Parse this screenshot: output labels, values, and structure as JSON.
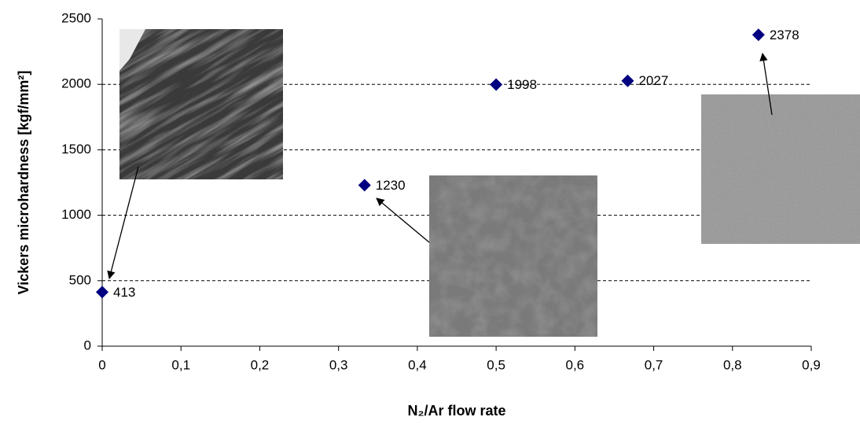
{
  "chart_data": {
    "type": "scatter",
    "x_label": "N₂/Ar flow rate",
    "y_label": "Vickers microhardness [kgf/mm²]",
    "x": [
      0,
      0.333,
      0.5,
      0.667,
      0.833
    ],
    "values": [
      413,
      1230,
      1998,
      2027,
      2378
    ],
    "color": "#000080",
    "xlim": [
      0,
      0.9
    ],
    "xticks": [
      0,
      {
        "value": 0.1,
        "label": "0,1"
      },
      {
        "value": 0.2,
        "label": "0,2"
      },
      {
        "value": 0.3,
        "label": "0,3"
      },
      {
        "value": 0.4,
        "label": "0,4"
      },
      {
        "value": 0.5,
        "label": "0,5"
      },
      {
        "value": 0.6,
        "label": "0,6"
      },
      {
        "value": 0.7,
        "label": "0,7"
      },
      {
        "value": 0.8,
        "label": "0,8"
      },
      {
        "value": 0.9,
        "label": "0,9"
      }
    ],
    "ylim": [
      0,
      2500
    ],
    "yticks": [
      0,
      500,
      1000,
      1500,
      2000,
      2500
    ],
    "grid": true
  }
}
